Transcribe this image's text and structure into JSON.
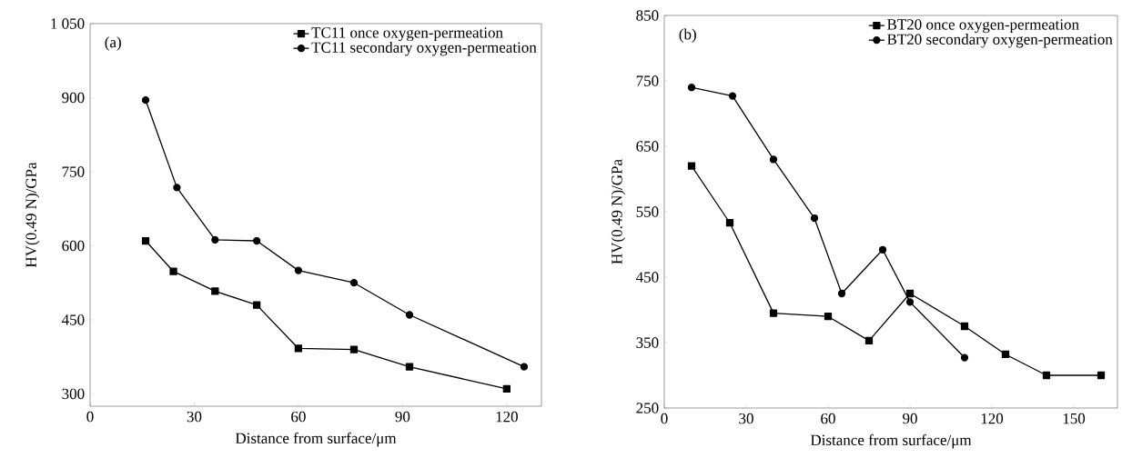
{
  "chart_data": [
    {
      "type": "line",
      "annotations": [
        "(a)"
      ],
      "xlabel": "Distance from surface/μm",
      "ylabel": "HV(0.49 N)/GPa",
      "xlim": [
        0,
        130
      ],
      "ylim": [
        275,
        1050
      ],
      "xticks": [
        0,
        30,
        60,
        90,
        120
      ],
      "yticks": [
        300,
        450,
        600,
        750,
        900,
        {
          "value": 1050,
          "label": "1 050"
        }
      ],
      "legend": "top right",
      "series": [
        {
          "name": "TC11 once oxygen-permeation",
          "color": "#000000",
          "marker": "square",
          "x": [
            16,
            24,
            36,
            48,
            60,
            76,
            92,
            120
          ],
          "values": [
            610,
            548,
            508,
            480,
            392,
            390,
            355,
            310
          ]
        },
        {
          "name": "TC11 secondary oxygen-permeation",
          "color": "#000000",
          "marker": "circle",
          "x": [
            16,
            25,
            36,
            48,
            60,
            76,
            92,
            125
          ],
          "values": [
            895,
            718,
            612,
            610,
            550,
            525,
            460,
            355
          ]
        }
      ]
    },
    {
      "type": "line",
      "annotations": [
        "(b)"
      ],
      "xlabel": "Distance from surface/μm",
      "ylabel": "HV(0.49 N)/GPa",
      "xlim": [
        0,
        166
      ],
      "ylim": [
        250,
        850
      ],
      "xticks": [
        0,
        30,
        60,
        90,
        120,
        150
      ],
      "yticks": [
        250,
        350,
        450,
        550,
        650,
        750,
        850
      ],
      "legend": "top right",
      "series": [
        {
          "name": "BT20 once oxygen-permeation",
          "color": "#000000",
          "marker": "square",
          "x": [
            10,
            24,
            40,
            60,
            75,
            90,
            110,
            125,
            140,
            160
          ],
          "values": [
            620,
            533,
            395,
            390,
            353,
            425,
            375,
            332,
            300,
            300
          ]
        },
        {
          "name": "BT20 secondary oxygen-permeation",
          "color": "#000000",
          "marker": "circle",
          "x": [
            10,
            25,
            40,
            55,
            65,
            80,
            90,
            110
          ],
          "values": [
            740,
            727,
            630,
            540,
            425,
            492,
            412,
            327
          ]
        }
      ]
    }
  ]
}
